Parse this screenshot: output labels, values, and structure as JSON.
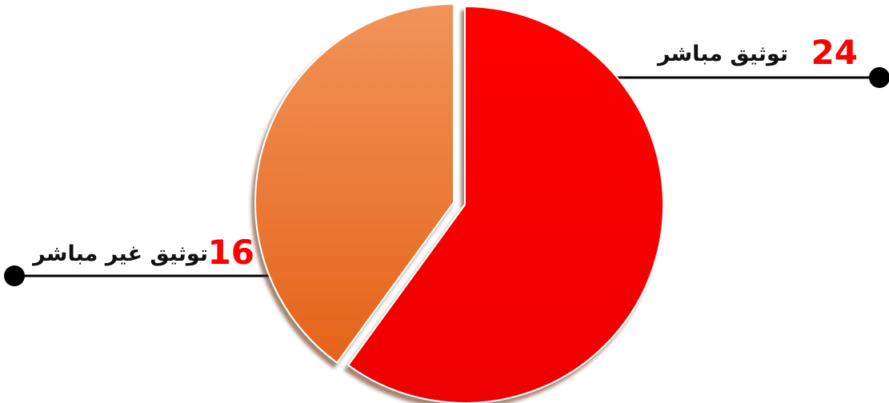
{
  "chart_data": {
    "type": "pie",
    "title": "",
    "slices": [
      {
        "label": "توثيق مباشر",
        "value": 24,
        "value_label": "24",
        "color": "#f40000"
      },
      {
        "label": "توثيق غير مباشر",
        "value": 16,
        "value_label": "16",
        "color": "#ee7a2a"
      }
    ],
    "legend": "callout-lines"
  },
  "colors": {
    "direct_slice": "#f40000",
    "indirect_slice": "#ee7a2a",
    "number_accent": "#ff0000",
    "callout_line": "#000000"
  }
}
